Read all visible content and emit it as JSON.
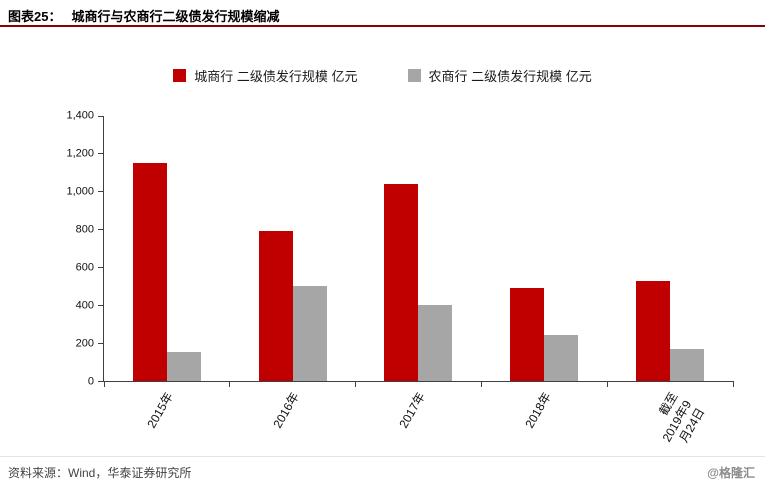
{
  "header": {
    "figure_label": "图表25：",
    "title": "城商行与农商行二级债发行规模缩减"
  },
  "chart_data": {
    "type": "bar",
    "categories": [
      "2015年",
      "2016年",
      "2017年",
      "2018年",
      "截至\n2019年9\n月24日"
    ],
    "series": [
      {
        "name": "城商行 二级债发行规模 亿元",
        "color": "#c00000",
        "values": [
          1150,
          790,
          1040,
          490,
          530
        ]
      },
      {
        "name": "农商行 二级债发行规模 亿元",
        "color": "#a6a6a6",
        "values": [
          155,
          500,
          400,
          245,
          170
        ]
      }
    ],
    "title": "",
    "xlabel": "",
    "ylabel": "",
    "ylim": [
      0,
      1400
    ],
    "ytick_step": 200,
    "grid": false,
    "legend_position": "top"
  },
  "footer": {
    "source": "资料来源：Wind，华泰证券研究所",
    "watermark": "@格隆汇"
  },
  "colors": {
    "accent_rule": "#8b0000",
    "axis": "#404040",
    "city_bank_bar": "#c00000",
    "rural_bank_bar": "#a6a6a6"
  }
}
